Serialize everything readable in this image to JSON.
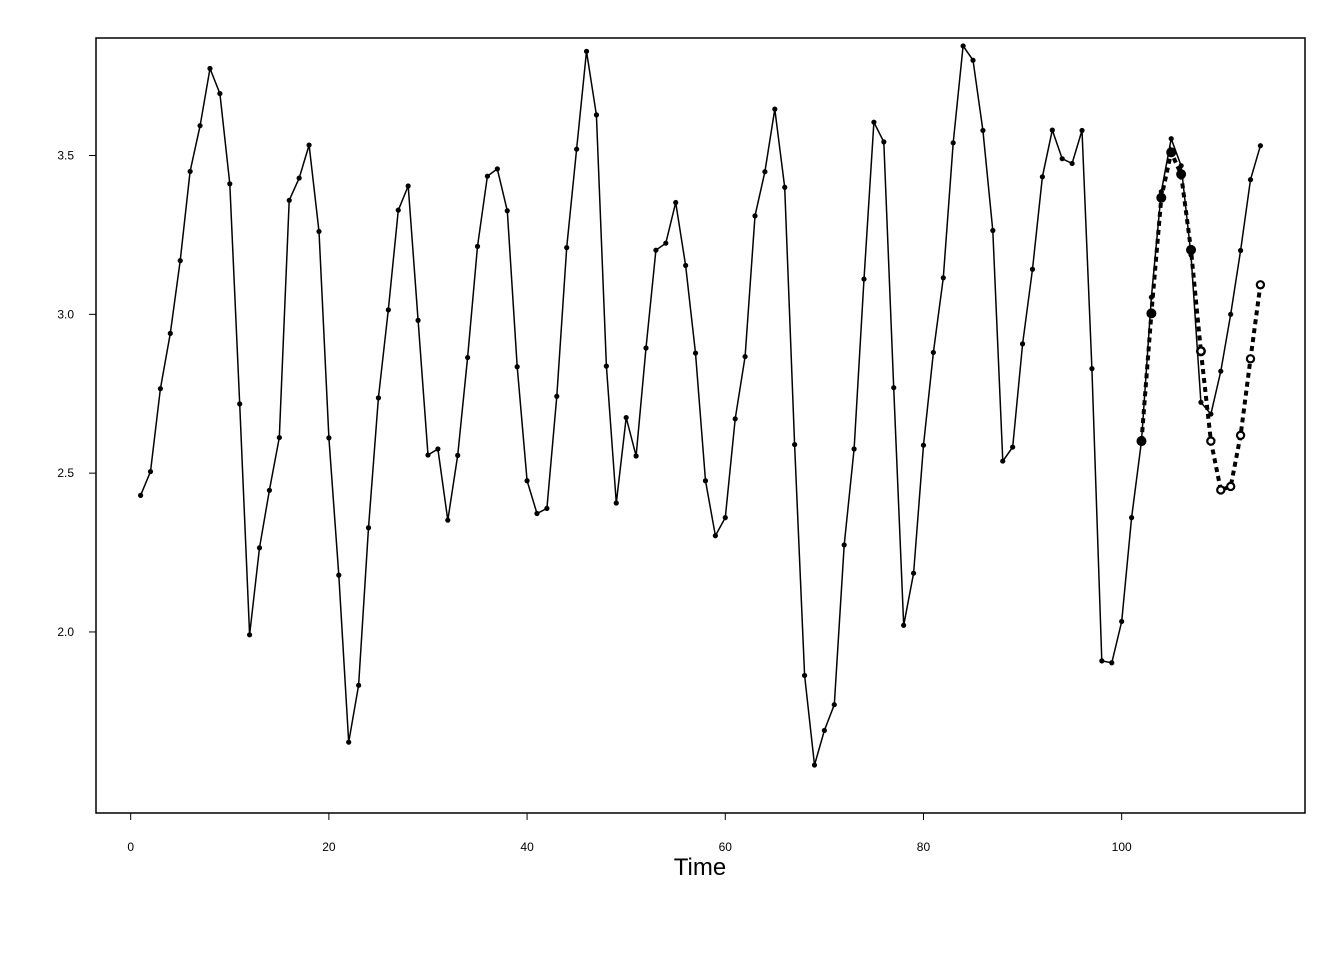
{
  "chart_data": {
    "type": "line",
    "title": "",
    "xlabel": "Time",
    "ylabel": "",
    "xlim": [
      -3.5,
      118.5
    ],
    "ylim": [
      1.43,
      3.87
    ],
    "x_ticks": [
      0,
      20,
      40,
      60,
      80,
      100
    ],
    "x_tick_labels": [
      "0",
      "20",
      "40",
      "60",
      "80",
      "100"
    ],
    "y_ticks": [
      2.0,
      2.5,
      3.0,
      3.5
    ],
    "y_tick_labels": [
      "2.0",
      "2.5",
      "3.0",
      "3.5"
    ],
    "grid": false,
    "legend": "none",
    "colors": {
      "line": "#000000",
      "background": "#ffffff"
    },
    "series": [
      {
        "style": "solid-line-small-points",
        "x": [
          1,
          2,
          3,
          4,
          5,
          6,
          7,
          8,
          9,
          10,
          11,
          12,
          13,
          14,
          15,
          16,
          17,
          18,
          19,
          20,
          21,
          22,
          23,
          24,
          25,
          26,
          27,
          28,
          29,
          30,
          31,
          32,
          33,
          34,
          35,
          36,
          37,
          38,
          39,
          40,
          41,
          42,
          43,
          44,
          45,
          46,
          47,
          48,
          49,
          50,
          51,
          52,
          53,
          54,
          55,
          56,
          57,
          58,
          59,
          60,
          61,
          62,
          63,
          64,
          65,
          66,
          67,
          68,
          69,
          70,
          71,
          72,
          73,
          74,
          75,
          76,
          77,
          78,
          79,
          80,
          81,
          82,
          83,
          84,
          85,
          86,
          87,
          88,
          89,
          90,
          91,
          92,
          93,
          94,
          95,
          96,
          97,
          98,
          99,
          100,
          101,
          102,
          103,
          104,
          105,
          106,
          107,
          108,
          109,
          110,
          111,
          112,
          113,
          114
        ],
        "y": [
          2.43,
          2.505,
          2.766,
          2.94,
          3.169,
          3.45,
          3.594,
          3.774,
          3.695,
          3.411,
          2.718,
          1.991,
          2.265,
          2.446,
          2.612,
          3.359,
          3.429,
          3.533,
          3.261,
          2.611,
          2.179,
          1.653,
          1.832,
          2.328,
          2.737,
          3.014,
          3.328,
          3.404,
          2.981,
          2.557,
          2.576,
          2.352,
          2.556,
          2.864,
          3.214,
          3.435,
          3.458,
          3.326,
          2.835,
          2.476,
          2.373,
          2.389,
          2.742,
          3.21,
          3.52,
          3.828,
          3.628,
          2.837,
          2.406,
          2.675,
          2.554,
          2.894,
          3.202,
          3.224,
          3.352,
          3.154,
          2.878,
          2.476,
          2.303,
          2.36,
          2.671,
          2.867,
          3.31,
          3.449,
          3.646,
          3.4,
          2.59,
          1.863,
          1.581,
          1.69,
          1.771,
          2.274,
          2.576,
          3.111,
          3.605,
          3.543,
          2.769,
          2.021,
          2.185,
          2.588,
          2.88,
          3.115,
          3.54,
          3.845,
          3.8,
          3.579,
          3.264,
          2.538,
          2.582,
          2.907,
          3.142,
          3.433,
          3.58,
          3.49,
          3.475,
          3.579,
          2.829,
          1.909,
          1.903,
          2.033,
          2.36,
          2.601,
          3.054,
          3.386,
          3.553,
          3.468,
          3.187,
          2.723,
          2.686,
          2.821,
          3.0,
          3.201,
          3.424,
          3.531
        ]
      },
      {
        "style": "dotted-line-filled-large-points",
        "x": [
          102,
          103,
          104,
          105,
          106,
          107,
          108
        ],
        "y": [
          2.601,
          3.003,
          3.367,
          3.51,
          3.441,
          3.203,
          2.884
        ]
      },
      {
        "style": "dotted-line-open-points",
        "x": [
          108,
          109,
          110,
          111,
          112,
          113,
          114
        ],
        "y": [
          2.884,
          2.601,
          2.447,
          2.458,
          2.619,
          2.86,
          3.093
        ]
      }
    ]
  }
}
